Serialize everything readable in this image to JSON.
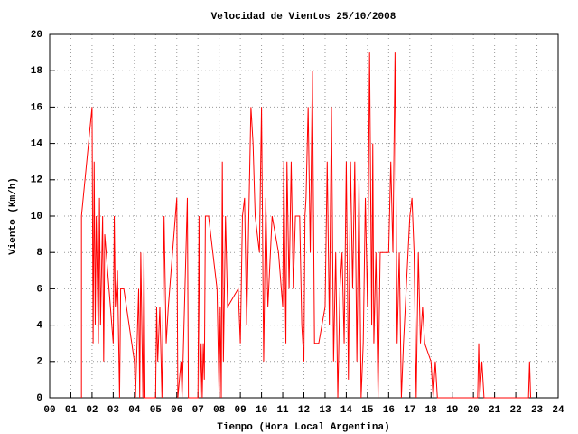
{
  "chart_data": {
    "type": "line",
    "title": "Velocidad de Vientos 25/10/2008",
    "x_label": "Tiempo (Hora Local Argentina)",
    "y_label": "Viento (Km/h)",
    "xlim": [
      0,
      24
    ],
    "ylim": [
      0,
      20
    ],
    "xticks": [
      {
        "value": 0,
        "label": "00"
      },
      {
        "value": 1,
        "label": "01"
      },
      {
        "value": 2,
        "label": "02"
      },
      {
        "value": 3,
        "label": "03"
      },
      {
        "value": 4,
        "label": "04"
      },
      {
        "value": 5,
        "label": "05"
      },
      {
        "value": 6,
        "label": "06"
      },
      {
        "value": 7,
        "label": "07"
      },
      {
        "value": 8,
        "label": "08"
      },
      {
        "value": 9,
        "label": "09"
      },
      10,
      11,
      12,
      13,
      14,
      15,
      16,
      17,
      18,
      19,
      20,
      21,
      22,
      23,
      24
    ],
    "yticks": [
      0,
      2,
      4,
      6,
      8,
      10,
      12,
      14,
      16,
      18,
      20
    ],
    "grid": true,
    "series": [
      {
        "color": "#ff0000",
        "x": [
          1.5,
          1.5,
          2.0,
          2.05,
          2.1,
          2.15,
          2.2,
          2.3,
          2.35,
          2.4,
          2.5,
          2.55,
          2.6,
          3.0,
          3.05,
          3.1,
          3.2,
          3.3,
          3.35,
          3.5,
          4.0,
          4.05,
          4.2,
          4.25,
          4.3,
          4.4,
          4.45,
          4.5,
          5.0,
          5.05,
          5.1,
          5.2,
          5.3,
          5.4,
          5.5,
          5.6,
          5.8,
          6.0,
          6.05,
          6.2,
          6.25,
          6.5,
          6.55,
          7.0,
          7.05,
          7.1,
          7.15,
          7.2,
          7.25,
          7.3,
          7.35,
          7.5,
          7.9,
          8.0,
          8.05,
          8.1,
          8.15,
          8.2,
          8.3,
          8.4,
          8.9,
          9.0,
          9.1,
          9.2,
          9.3,
          9.5,
          9.6,
          9.7,
          9.9,
          10.0,
          10.1,
          10.2,
          10.3,
          10.5,
          10.8,
          11.0,
          11.05,
          11.15,
          11.2,
          11.3,
          11.4,
          11.5,
          11.6,
          11.8,
          11.9,
          12.0,
          12.05,
          12.1,
          12.2,
          12.3,
          12.4,
          12.5,
          12.7,
          13.0,
          13.1,
          13.2,
          13.3,
          13.4,
          13.5,
          13.6,
          13.7,
          13.8,
          13.9,
          14.0,
          14.1,
          14.2,
          14.3,
          14.4,
          14.5,
          14.6,
          14.7,
          14.8,
          14.9,
          15.0,
          15.1,
          15.2,
          15.25,
          15.3,
          15.4,
          15.5,
          15.6,
          16.0,
          16.1,
          16.2,
          16.3,
          16.4,
          16.5,
          16.6,
          16.7,
          17.0,
          17.1,
          17.2,
          17.3,
          17.4,
          17.5,
          17.6,
          17.7,
          18.0,
          18.1,
          18.2,
          18.3,
          20.2,
          20.25,
          20.3,
          20.4,
          20.5,
          22.6,
          22.65,
          22.7
        ],
        "values": [
          0,
          10,
          16,
          3,
          13,
          4,
          10,
          3,
          11,
          4,
          10,
          2,
          9,
          3,
          10,
          5,
          7,
          0,
          6,
          6,
          2,
          0,
          6,
          0,
          8,
          0,
          8,
          0,
          0,
          5,
          2,
          5,
          0,
          10,
          3,
          5,
          8,
          11,
          0,
          2,
          0,
          11,
          0,
          0,
          10,
          0,
          3,
          0,
          3,
          1,
          10,
          10,
          6,
          0,
          5,
          0,
          13,
          2,
          10,
          5,
          6,
          3,
          10,
          11,
          4,
          16,
          14,
          10,
          8,
          16,
          2,
          11,
          5,
          10,
          8,
          5,
          13,
          3,
          13,
          6,
          13,
          6,
          10,
          10,
          4,
          2,
          10,
          11,
          16,
          8,
          18,
          3,
          3,
          5,
          13,
          4,
          16,
          2,
          8,
          0,
          6,
          8,
          3,
          13,
          1,
          13,
          6,
          13,
          2,
          12,
          0,
          3,
          11,
          5,
          19,
          4,
          14,
          3,
          8,
          0,
          8,
          8,
          13,
          8,
          19,
          3,
          8,
          0,
          3,
          10,
          11,
          8,
          0,
          8,
          3,
          5,
          3,
          2,
          0,
          2,
          0,
          0,
          3,
          0,
          2,
          0,
          0,
          2,
          0
        ]
      }
    ]
  }
}
